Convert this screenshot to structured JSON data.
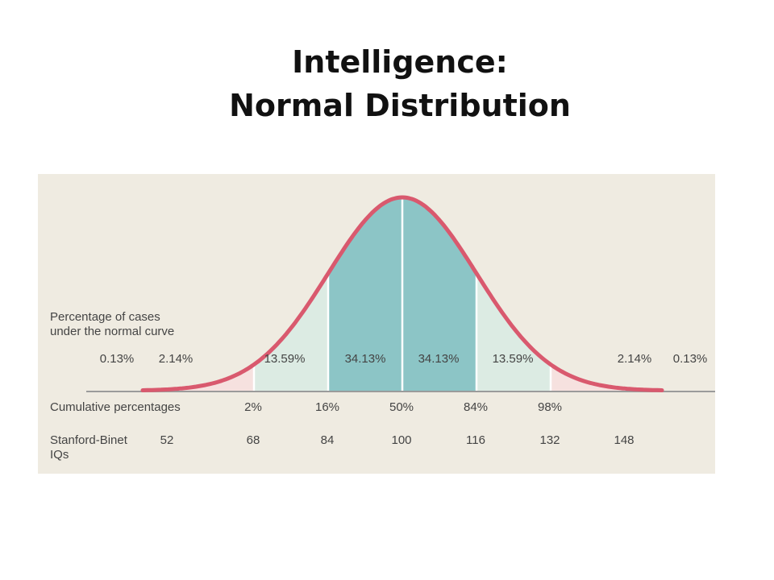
{
  "title": {
    "line1": "Intelligence:",
    "line2": "Normal Distribution"
  },
  "colors": {
    "panel_bg": "#efebe1",
    "curve": "#d9596e",
    "tail_fill": "#f6e1df",
    "outer_fill": "#dcebe3",
    "center_fill": "#8cc5c6",
    "axis": "#9b9b9b",
    "text": "#444444"
  },
  "chart_data": {
    "type": "area",
    "title": "",
    "x_range": [
      44,
      156
    ],
    "percentage_heading": [
      "Percentage of cases",
      "under the normal curve"
    ],
    "segments": [
      {
        "from_iq": 44,
        "to_iq": 52,
        "percent_label": "0.13%"
      },
      {
        "from_iq": 52,
        "to_iq": 68,
        "percent_label": "2.14%"
      },
      {
        "from_iq": 68,
        "to_iq": 84,
        "percent_label": "13.59%"
      },
      {
        "from_iq": 84,
        "to_iq": 100,
        "percent_label": "34.13%"
      },
      {
        "from_iq": 100,
        "to_iq": 116,
        "percent_label": "34.13%"
      },
      {
        "from_iq": 116,
        "to_iq": 132,
        "percent_label": "13.59%"
      },
      {
        "from_iq": 132,
        "to_iq": 148,
        "percent_label": "2.14%"
      },
      {
        "from_iq": 148,
        "to_iq": 156,
        "percent_label": "0.13%"
      }
    ],
    "cumulative_heading": "Cumulative percentages",
    "cumulative": [
      {
        "iq": 68,
        "label": "2%"
      },
      {
        "iq": 84,
        "label": "16%"
      },
      {
        "iq": 100,
        "label": "50%"
      },
      {
        "iq": 116,
        "label": "84%"
      },
      {
        "iq": 132,
        "label": "98%"
      }
    ],
    "iq_heading": [
      "Stanford-Binet",
      "IQs"
    ],
    "iq_ticks": [
      52,
      68,
      84,
      100,
      116,
      132,
      148
    ],
    "mean": 100,
    "sd": 16
  }
}
